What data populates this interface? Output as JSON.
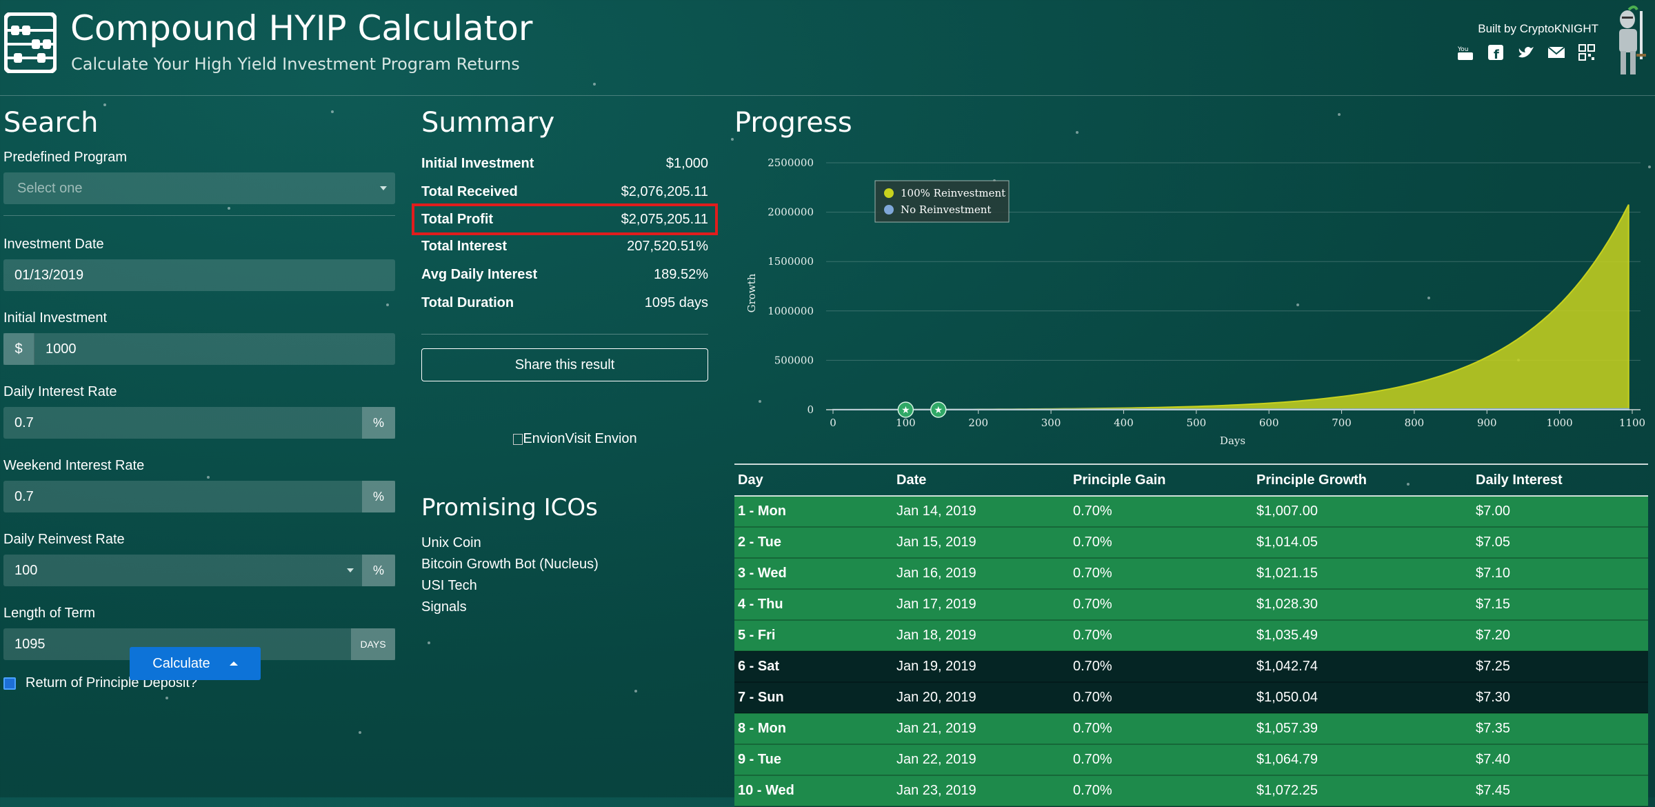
{
  "header": {
    "title": "Compound HYIP Calculator",
    "subtitle": "Calculate Your High Yield Investment Program Returns",
    "built_by": "Built by CryptoKNIGHT",
    "social_icons": [
      "youtube-icon",
      "facebook-icon",
      "twitter-icon",
      "mail-icon",
      "qr-code-icon"
    ]
  },
  "search": {
    "title": "Search",
    "predefined_label": "Predefined Program",
    "predefined_placeholder": "Select one",
    "date_label": "Investment Date",
    "date_value": "01/13/2019",
    "initial_label": "Initial Investment",
    "initial_prefix": "$",
    "initial_value": "1000",
    "daily_label": "Daily Interest Rate",
    "daily_value": "0.7",
    "weekend_label": "Weekend Interest Rate",
    "weekend_value": "0.7",
    "reinvest_label": "Daily Reinvest Rate",
    "reinvest_value": "100",
    "percent": "%",
    "term_label": "Length of Term",
    "term_value": "1095",
    "term_suffix": "DAYS",
    "return_label": "Return of Principle Deposit?",
    "calculate_label": "Calculate"
  },
  "summary": {
    "title": "Summary",
    "rows": [
      {
        "k": "Initial Investment",
        "v": "$1,000"
      },
      {
        "k": "Total Received",
        "v": "$2,076,205.11"
      },
      {
        "k": "Total Profit",
        "v": "$2,075,205.11"
      },
      {
        "k": "Total Interest",
        "v": "207,520.51%"
      },
      {
        "k": "Avg Daily Interest",
        "v": "189.52%"
      },
      {
        "k": "Total Duration",
        "v": "1095 days"
      }
    ],
    "share_label": "Share this result",
    "envion_alt": "Envion",
    "envion_link": "Visit Envion"
  },
  "icos": {
    "title": "Promising ICOs",
    "items": [
      "Unix Coin",
      "Bitcoin Growth Bot (Nucleus)",
      "USI Tech",
      "Signals"
    ]
  },
  "progress": {
    "title": "Progress"
  },
  "chart_data": {
    "type": "area",
    "xlabel": "Days",
    "ylabel": "Growth",
    "xlim": [
      0,
      1100
    ],
    "ylim": [
      0,
      2500000
    ],
    "xticks": [
      "0",
      "100",
      "200",
      "300",
      "400",
      "500",
      "600",
      "700",
      "800",
      "900",
      "1000",
      "1100"
    ],
    "yticks": [
      "0",
      "500000",
      "1000000",
      "1500000",
      "2000000",
      "2500000"
    ],
    "legend_position": "top-left",
    "series": [
      {
        "name": "100% Reinvestment",
        "color": "#c8d21e",
        "x": [
          0,
          100,
          200,
          300,
          400,
          500,
          600,
          700,
          800,
          900,
          1000,
          1095
        ],
        "y": [
          1000,
          2000,
          4100,
          8200,
          16400,
          33000,
          66000,
          133000,
          266000,
          532000,
          1065000,
          2076205
        ]
      },
      {
        "name": "No Reinvestment",
        "color": "#7fa7d9",
        "x": [
          0,
          1095
        ],
        "y": [
          1000,
          8665
        ]
      }
    ]
  },
  "table": {
    "headers": [
      "Day",
      "Date",
      "Principle Gain",
      "Principle Growth",
      "Daily Interest"
    ],
    "rows": [
      {
        "day": "1 - Mon",
        "date": "Jan 14, 2019",
        "gain": "0.70%",
        "growth": "$1,007.00",
        "interest": "$7.00",
        "weekend": false
      },
      {
        "day": "2 - Tue",
        "date": "Jan 15, 2019",
        "gain": "0.70%",
        "growth": "$1,014.05",
        "interest": "$7.05",
        "weekend": false
      },
      {
        "day": "3 - Wed",
        "date": "Jan 16, 2019",
        "gain": "0.70%",
        "growth": "$1,021.15",
        "interest": "$7.10",
        "weekend": false
      },
      {
        "day": "4 - Thu",
        "date": "Jan 17, 2019",
        "gain": "0.70%",
        "growth": "$1,028.30",
        "interest": "$7.15",
        "weekend": false
      },
      {
        "day": "5 - Fri",
        "date": "Jan 18, 2019",
        "gain": "0.70%",
        "growth": "$1,035.49",
        "interest": "$7.20",
        "weekend": false
      },
      {
        "day": "6 - Sat",
        "date": "Jan 19, 2019",
        "gain": "0.70%",
        "growth": "$1,042.74",
        "interest": "$7.25",
        "weekend": true
      },
      {
        "day": "7 - Sun",
        "date": "Jan 20, 2019",
        "gain": "0.70%",
        "growth": "$1,050.04",
        "interest": "$7.30",
        "weekend": true
      },
      {
        "day": "8 - Mon",
        "date": "Jan 21, 2019",
        "gain": "0.70%",
        "growth": "$1,057.39",
        "interest": "$7.35",
        "weekend": false
      },
      {
        "day": "9 - Tue",
        "date": "Jan 22, 2019",
        "gain": "0.70%",
        "growth": "$1,064.79",
        "interest": "$7.40",
        "weekend": false
      },
      {
        "day": "10 - Wed",
        "date": "Jan 23, 2019",
        "gain": "0.70%",
        "growth": "$1,072.25",
        "interest": "$7.45",
        "weekend": false
      }
    ]
  },
  "colors": {
    "background": "#0a4c48",
    "weekday_row": "#1e8a4b",
    "weekend_row": "#052524",
    "highlight": "#e01d1d",
    "button": "#0d73d8"
  }
}
